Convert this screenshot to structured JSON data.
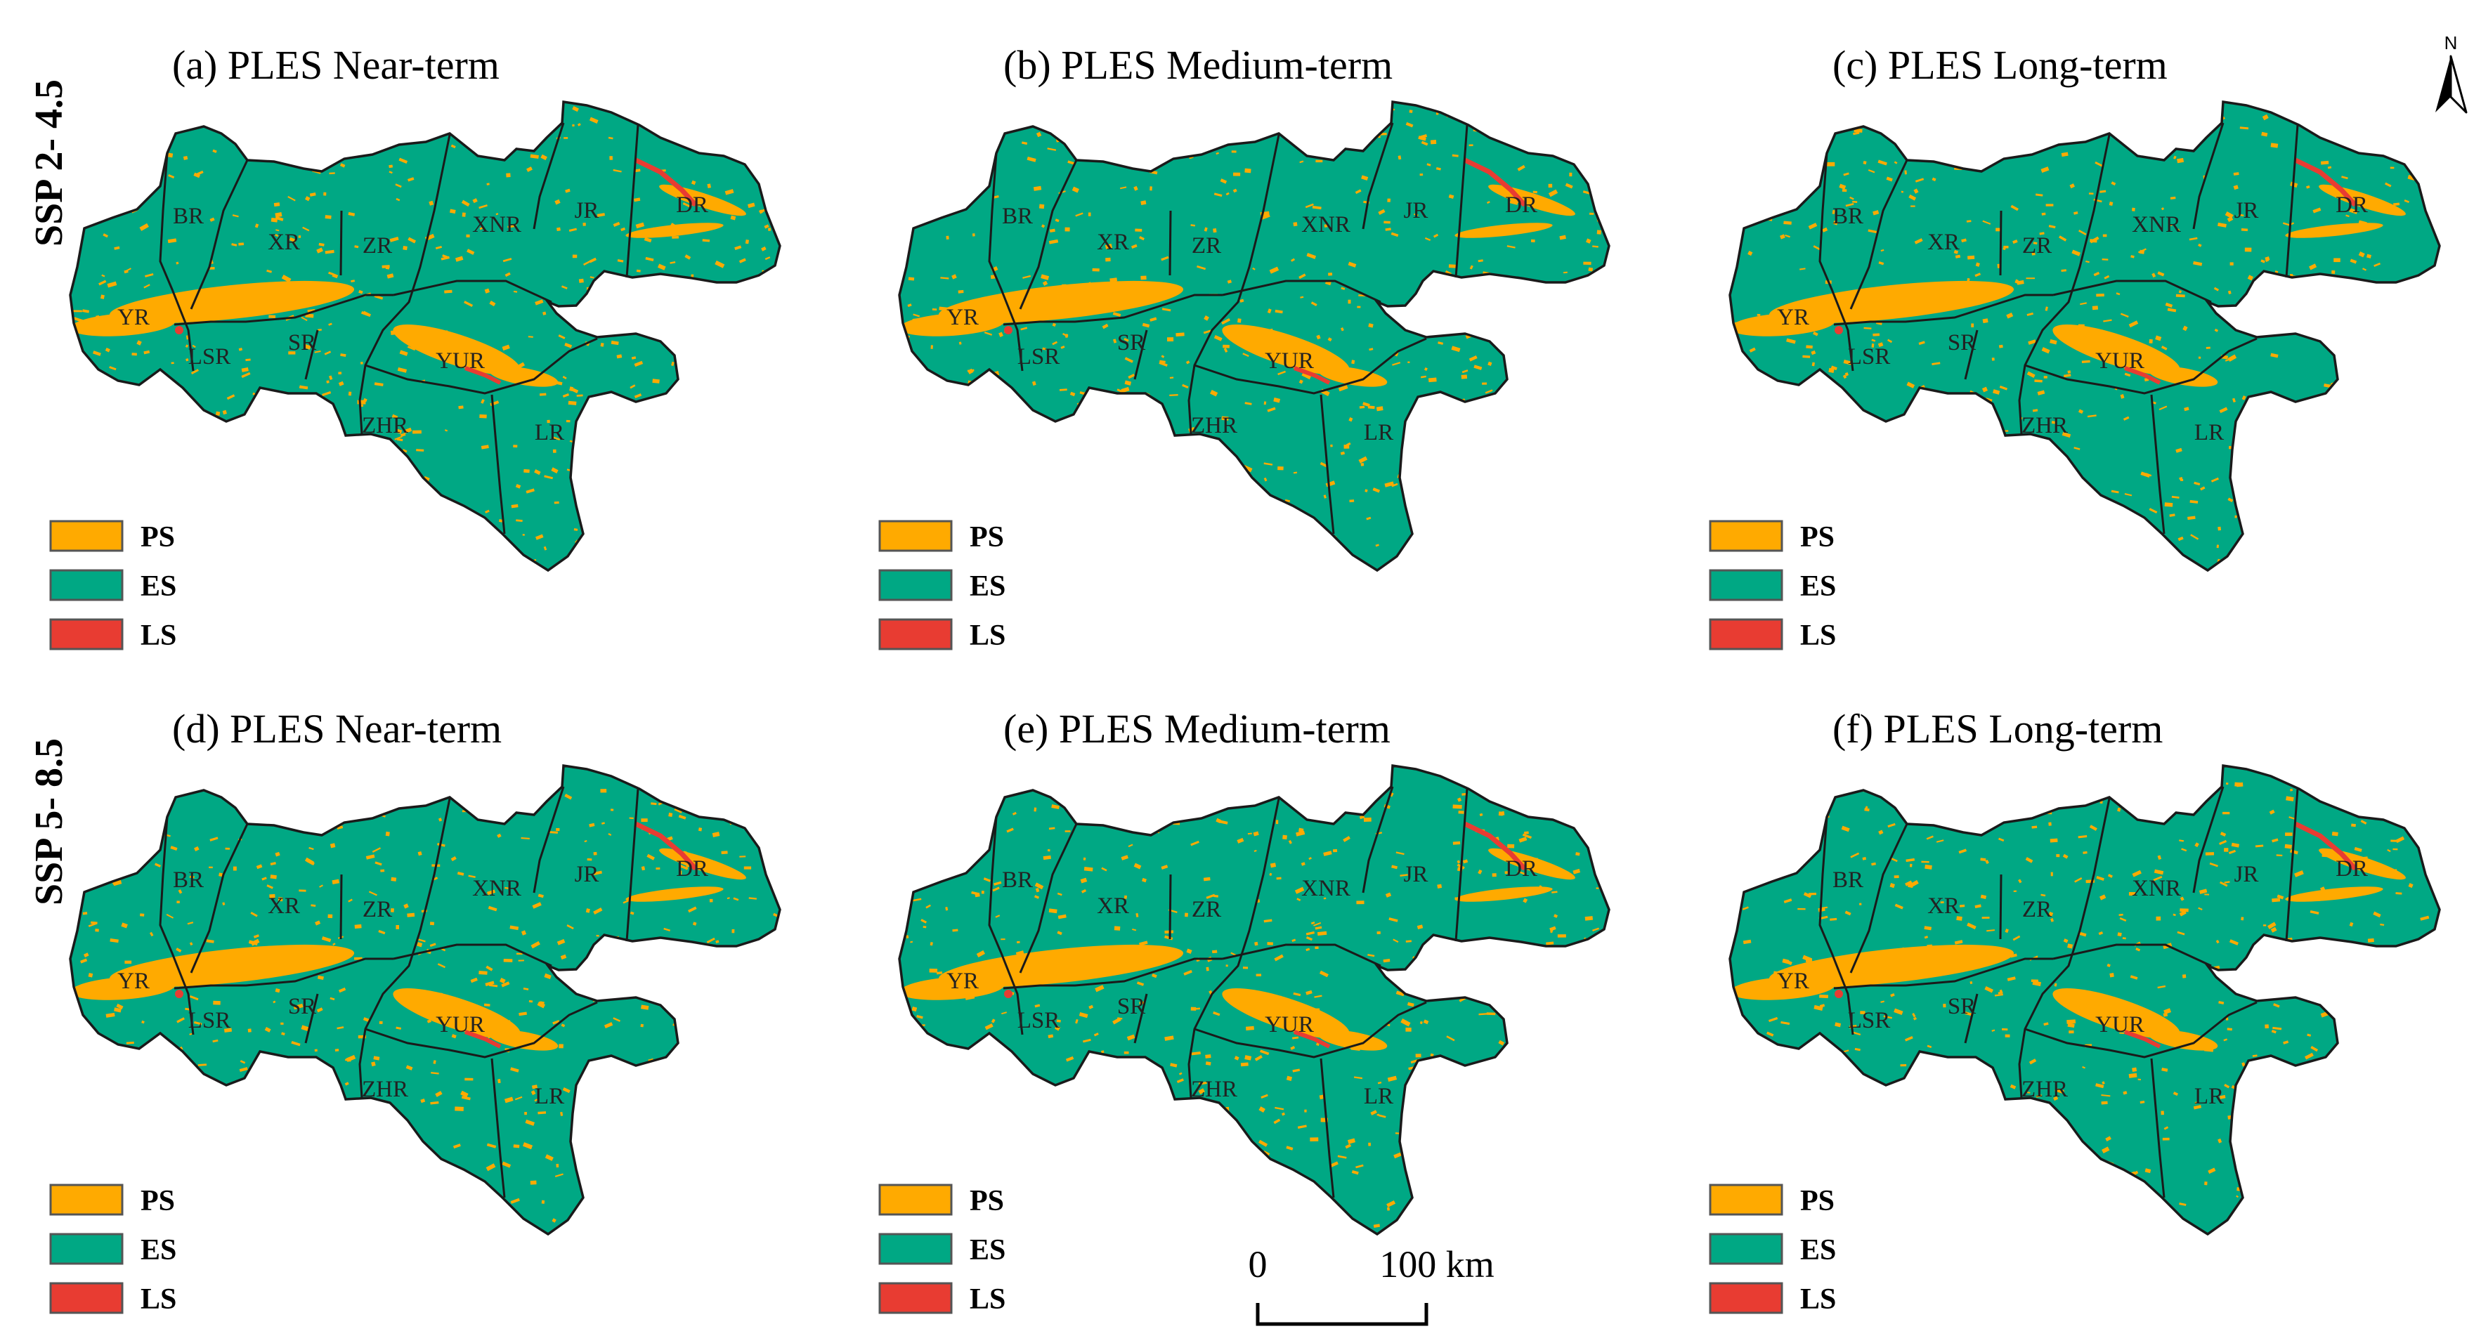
{
  "rows": [
    {
      "label": "SSP 2- 4.5"
    },
    {
      "label": "SSP 5- 8.5"
    }
  ],
  "panels": [
    {
      "title": "(a) PLES Near-term"
    },
    {
      "title": "(b) PLES Medium-term"
    },
    {
      "title": "(c) PLES Long-term"
    },
    {
      "title": "(d) PLES Near-term"
    },
    {
      "title": "(e) PLES Medium-term"
    },
    {
      "title": "(f) PLES Long-term"
    }
  ],
  "legend": [
    {
      "label": "PS",
      "color": "#FFAA00"
    },
    {
      "label": "ES",
      "color": "#00A884"
    },
    {
      "label": "LS",
      "color": "#E83C32"
    }
  ],
  "regions": [
    "BR",
    "XR",
    "ZR",
    "XNR",
    "JR",
    "DR",
    "YR",
    "LSR",
    "SR",
    "YUR",
    "ZHR",
    "LR"
  ],
  "scale_bar": {
    "start": "0",
    "end": "100 km"
  },
  "north_arrow": {
    "label": "N"
  },
  "colors": {
    "outline": "#1a1a1a",
    "ps": "#FFAA00",
    "es": "#00A884",
    "ls": "#E83C32"
  }
}
